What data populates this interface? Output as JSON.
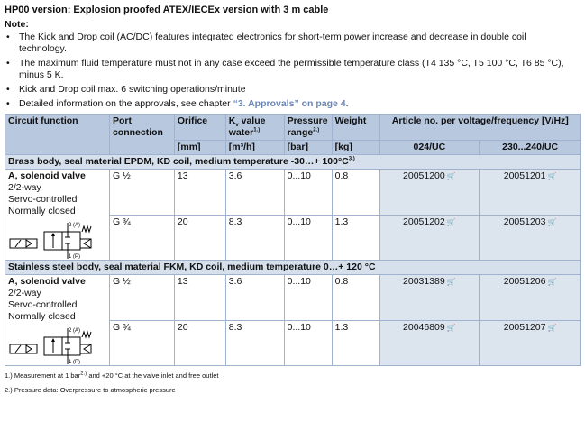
{
  "title": "HP00 version: Explosion proofed ATEX/IECEx version with 3 m cable",
  "note_label": "Note:",
  "notes": [
    "The Kick and Drop coil (AC/DC) features integrated electronics for short-term power increase and decrease in double coil technology.",
    "The maximum fluid temperature must not in any case exceed the permissible temperature class (T4 135 °C, T5 100 °C, T6 85 °C), minus 5 K.",
    "Kick and Drop coil max. 6 switching operations/minute",
    "Detailed information on the approvals, see chapter "
  ],
  "notes_link": "“3. Approvals” on page 4",
  "notes_link_end": ".",
  "headers": {
    "circuit": "Circuit function",
    "port": "Port connection",
    "orifice": "Orifice",
    "kv": "K",
    "kv_sub": "v",
    "kv_rest": " value water",
    "kv_sup": "1.)",
    "pressure": "Pressure range",
    "pressure_sup": "2.)",
    "weight": "Weight",
    "article": "Article no. per voltage/frequency [V/Hz]",
    "units": {
      "orifice": "[mm]",
      "kv": "[m³/h]",
      "pressure": "[bar]",
      "weight": "[kg]",
      "v1": "024/UC",
      "v2": "230...240/UC"
    }
  },
  "sections": [
    {
      "title": "Brass body, seal material EPDM, KD coil, medium temperature -30…+ 100°C",
      "title_sup": "3.)",
      "func": {
        "name": "A, solenoid valve",
        "l1": "2/2-way",
        "l2": "Servo-controlled",
        "l3": "Normally closed"
      },
      "rows": [
        {
          "port": "G ½",
          "orifice": "13",
          "kv": "3.6",
          "pressure": "0...10",
          "weight": "0.8",
          "a1": "20051200",
          "a2": "20051201"
        },
        {
          "port": "G ¾",
          "orifice": "20",
          "kv": "8.3",
          "pressure": "0...10",
          "weight": "1.3",
          "a1": "20051202",
          "a2": "20051203"
        }
      ]
    },
    {
      "title": "Stainless steel body, seal material FKM, KD coil, medium temperature 0…+ 120 °C",
      "title_sup": "",
      "func": {
        "name": "A, solenoid valve",
        "l1": "2/2-way",
        "l2": "Servo-controlled",
        "l3": "Normally closed"
      },
      "rows": [
        {
          "port": "G ½",
          "orifice": "13",
          "kv": "3.6",
          "pressure": "0...10",
          "weight": "0.8",
          "a1": "20031389",
          "a2": "20051206"
        },
        {
          "port": "G ¾",
          "orifice": "20",
          "kv": "8.3",
          "pressure": "0...10",
          "weight": "1.3",
          "a1": "20046809",
          "a2": "20051207"
        }
      ]
    }
  ],
  "symbol": {
    "port_a": "2 (A)",
    "port_p": "1 (P)"
  },
  "cart_icon": "🛒",
  "footnotes": [
    "1.) Measurement at 1 bar",
    "2.)",
    " and +20 °C at the valve inlet and free outlet",
    "2.) Pressure data: Overpressure to atmospheric pressure"
  ]
}
